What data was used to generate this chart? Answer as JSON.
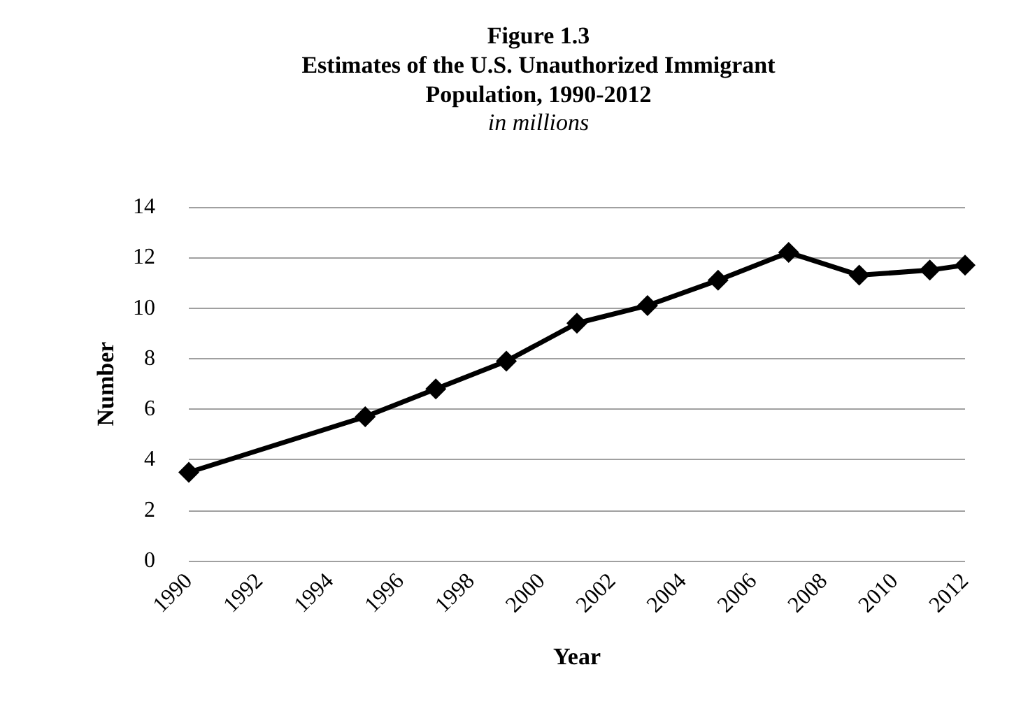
{
  "chart_data": {
    "type": "line",
    "title": "Figure 1.3\nEstimates of the U.S. Unauthorized Immigrant\nPopulation, 1990-2012",
    "subtitle": "in millions",
    "xlabel": "Year",
    "ylabel": "Number",
    "x": [
      1990,
      1995,
      1997,
      1999,
      2001,
      2003,
      2005,
      2007,
      2009,
      2011,
      2012
    ],
    "series": [
      {
        "color": "#000000",
        "values": [
          3.5,
          5.7,
          6.8,
          7.9,
          9.4,
          10.1,
          11.1,
          12.2,
          11.3,
          11.5,
          11.7
        ]
      }
    ],
    "xlim": [
      1990,
      2012
    ],
    "xticks": [
      1990,
      1992,
      1994,
      1996,
      1998,
      2000,
      2002,
      2004,
      2006,
      2008,
      2010,
      2012
    ],
    "ylim": [
      0,
      14
    ],
    "yticks": [
      0,
      2,
      4,
      6,
      8,
      10,
      12,
      14
    ],
    "grid": "y",
    "marker": "diamond",
    "line_style": "solid"
  }
}
